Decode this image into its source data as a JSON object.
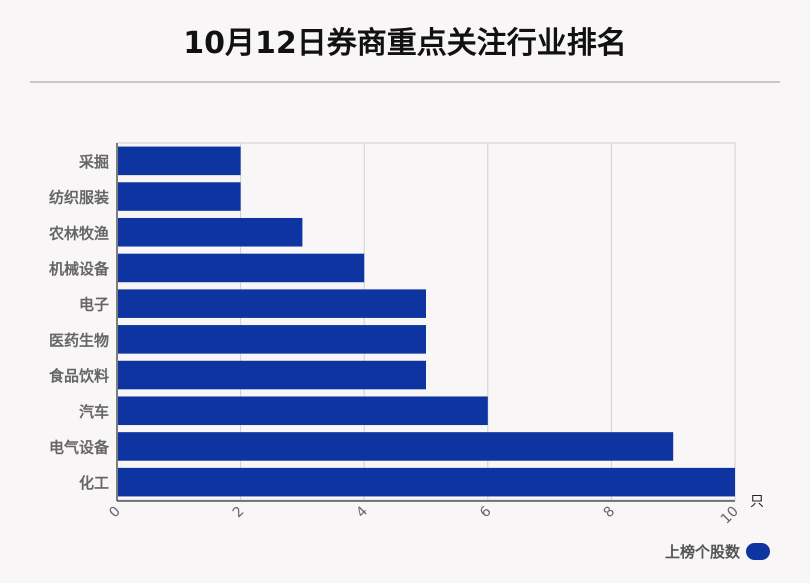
{
  "chart_data": {
    "type": "bar",
    "orientation": "horizontal",
    "title": "10月12日券商重点关注行业排名",
    "categories": [
      "采掘",
      "纺织服装",
      "农林牧渔",
      "机械设备",
      "电子",
      "医药生物",
      "食品饮料",
      "汽车",
      "电气设备",
      "化工"
    ],
    "series": [
      {
        "name": "上榜个股数",
        "values": [
          2,
          2,
          3,
          4,
          5,
          5,
          5,
          6,
          9,
          10
        ]
      }
    ],
    "xlim": [
      0,
      10
    ],
    "xticks": [
      "0",
      "2",
      "4",
      "6",
      "8",
      "10"
    ],
    "unit": "只",
    "grid": true,
    "legend_position": "bottom-right",
    "bar_color": "#0d34a1"
  }
}
